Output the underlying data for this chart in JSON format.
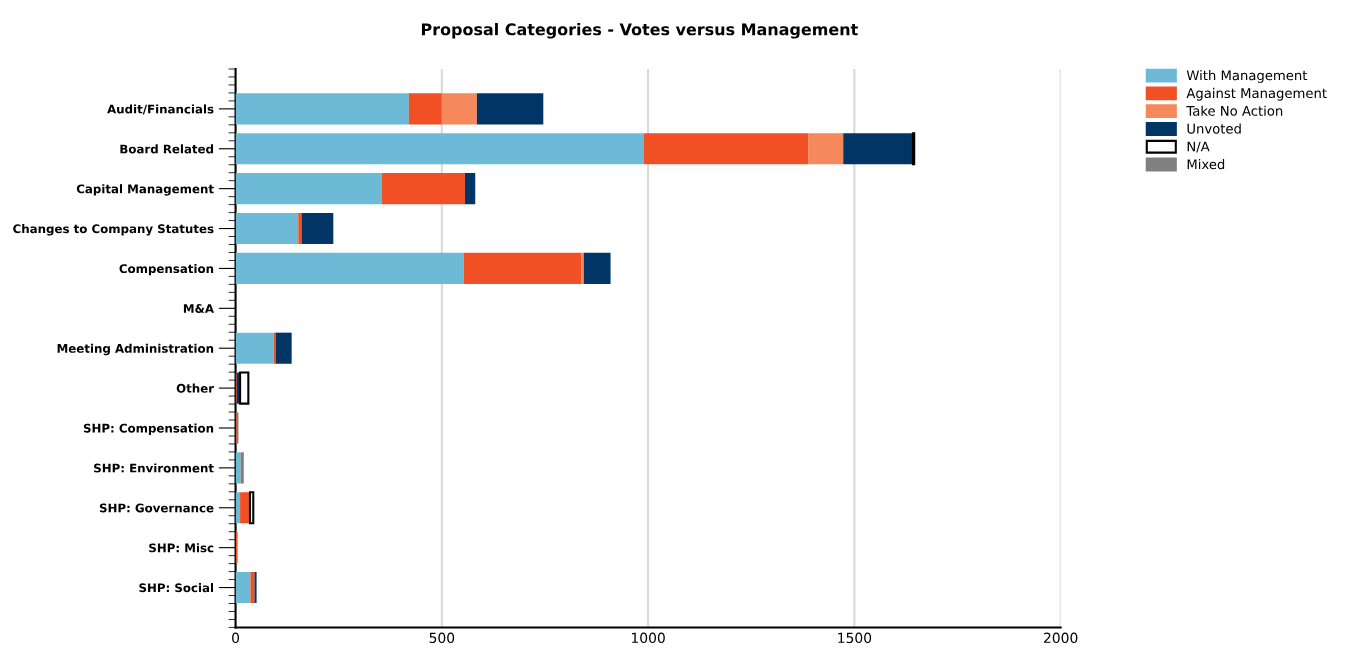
{
  "chart_data": {
    "type": "bar",
    "title": "Proposal Categories - Votes versus Management",
    "orientation": "horizontal",
    "stacked": true,
    "categories": [
      "Audit/Financials",
      "Board Related",
      "Capital Management",
      "Changes to Company Statutes",
      "Compensation",
      "M&A",
      "Meeting Administration",
      "Other",
      "SHP: Compensation",
      "SHP: Environment",
      "SHP: Governance",
      "SHP: Misc",
      "SHP: Social"
    ],
    "series": [
      {
        "name": "With Management",
        "color": "#6cbad6",
        "values": [
          420,
          989,
          354,
          152,
          553,
          0,
          93,
          0,
          null,
          12,
          11,
          null,
          36
        ]
      },
      {
        "name": "Against Management",
        "color": "#f05023",
        "values": [
          80,
          400,
          202,
          8,
          285,
          0,
          4,
          3,
          3,
          0,
          24,
          5,
          10
        ]
      },
      {
        "name": "Take No Action",
        "color": "#f5895b",
        "values": [
          85,
          84,
          0,
          0,
          6,
          0,
          0,
          0,
          0,
          0,
          0,
          0,
          0
        ]
      },
      {
        "name": "Unvoted",
        "color": "#003566",
        "values": [
          161,
          169,
          25,
          77,
          65,
          null,
          39,
          8,
          0,
          0,
          0,
          0,
          5
        ]
      },
      {
        "name": "N/A",
        "color": "#ffffff",
        "values": [
          0,
          3,
          0,
          0,
          0,
          0,
          0,
          20,
          0,
          0,
          8,
          0,
          0
        ]
      },
      {
        "name": "Mixed",
        "color": "#808080",
        "values": [
          0,
          0,
          0,
          0,
          0,
          0,
          0,
          0,
          4,
          8,
          0,
          0,
          0
        ]
      }
    ],
    "xlim": [
      0,
      2000
    ],
    "xticks": [
      0,
      500,
      1000,
      1500,
      2000
    ],
    "grid": "x",
    "legend": "top right"
  }
}
